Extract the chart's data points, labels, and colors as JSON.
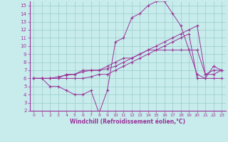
{
  "xlabel": "Windchill (Refroidissement éolien,°C)",
  "bg_color": "#c8ecec",
  "grid_color": "#99cccc",
  "line_color": "#993399",
  "spine_color": "#993399",
  "xlim": [
    -0.5,
    23.5
  ],
  "ylim": [
    2,
    15.5
  ],
  "xticks": [
    0,
    1,
    2,
    3,
    4,
    5,
    6,
    7,
    8,
    9,
    10,
    11,
    12,
    13,
    14,
    15,
    16,
    17,
    18,
    19,
    20,
    21,
    22,
    23
  ],
  "yticks": [
    2,
    3,
    4,
    5,
    6,
    7,
    8,
    9,
    10,
    11,
    12,
    13,
    14,
    15
  ],
  "series1_x": [
    0,
    1,
    2,
    3,
    4,
    5,
    6,
    7,
    8,
    9,
    10,
    11,
    12,
    13,
    14,
    15,
    16,
    17,
    18,
    19,
    20,
    21,
    22,
    23
  ],
  "series1_y": [
    6,
    6,
    5,
    5,
    4.5,
    4,
    4,
    4.5,
    1.7,
    4.5,
    10.5,
    11,
    13.5,
    14,
    15,
    15.5,
    15.5,
    14,
    12.5,
    9.5,
    6.5,
    6,
    7.5,
    7
  ],
  "series2_x": [
    0,
    1,
    2,
    3,
    4,
    5,
    6,
    7,
    8,
    9,
    10,
    11,
    12,
    13,
    14,
    15,
    16,
    17,
    18,
    19,
    20,
    21,
    22,
    23
  ],
  "series2_y": [
    6,
    6,
    6,
    6.2,
    6.4,
    6.5,
    6.8,
    7,
    7,
    7.2,
    7.5,
    8,
    8.5,
    9,
    9.5,
    10,
    10.5,
    11,
    11.5,
    12,
    12.5,
    6.5,
    6.5,
    7
  ],
  "series3_x": [
    0,
    1,
    2,
    3,
    4,
    5,
    6,
    7,
    8,
    9,
    10,
    11,
    12,
    13,
    14,
    15,
    16,
    17,
    18,
    19,
    20,
    21,
    22,
    23
  ],
  "series3_y": [
    6,
    6,
    6,
    6,
    6.5,
    6.5,
    7,
    7,
    7,
    7.5,
    8,
    8.5,
    8.5,
    9,
    9.5,
    9.5,
    9.5,
    9.5,
    9.5,
    9.5,
    9.5,
    6.5,
    7,
    7
  ],
  "series4_x": [
    0,
    1,
    2,
    3,
    4,
    5,
    6,
    7,
    8,
    9,
    10,
    11,
    12,
    13,
    14,
    15,
    16,
    17,
    18,
    19,
    20,
    21,
    22,
    23
  ],
  "series4_y": [
    6,
    6,
    6,
    6,
    6,
    6,
    6,
    6.2,
    6.5,
    6.5,
    7,
    7.5,
    8,
    8.5,
    9,
    9.5,
    10,
    10.5,
    11,
    11.5,
    6,
    6,
    6,
    6
  ]
}
